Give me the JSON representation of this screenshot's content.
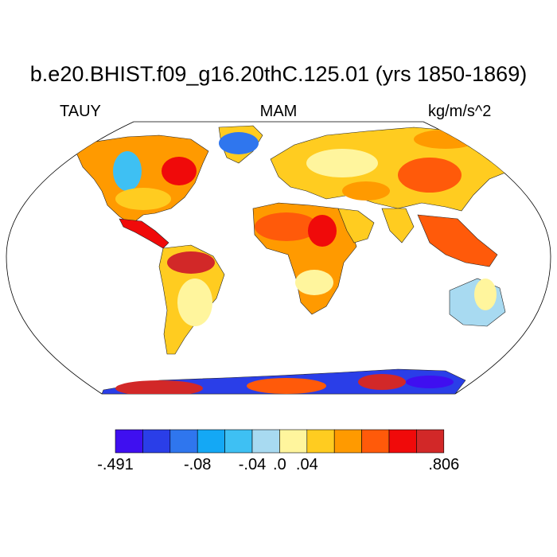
{
  "title": "b.e20.BHIST.f09_g16.20thC.125.01 (yrs 1850-1869)",
  "variable": "TAUY",
  "season": "MAM",
  "units": "kg/m/s^2",
  "colorbar": {
    "colors": [
      "#3f0ff0",
      "#2a3ee8",
      "#2f76ee",
      "#14a8f5",
      "#3ec0f3",
      "#a8daf1",
      "#fff59d",
      "#ffcc20",
      "#ff9a00",
      "#ff5a0a",
      "#f00a0a",
      "#d22828"
    ],
    "tick_labels": [
      "-.491",
      "-.08",
      "-.04",
      ".0",
      ".04",
      ".806"
    ]
  },
  "map": {
    "projection": "robinson",
    "ocean_color": "#ffffff",
    "land_regions": [
      {
        "name": "north-america",
        "color": "#ff9a00"
      },
      {
        "name": "greenland",
        "color": "#ffcc20"
      },
      {
        "name": "central-america",
        "color": "#f00a0a"
      },
      {
        "name": "south-america",
        "color": "#ffcc20"
      },
      {
        "name": "europe-asia",
        "color": "#ffcc20"
      },
      {
        "name": "africa",
        "color": "#ff9a00"
      },
      {
        "name": "arabia",
        "color": "#ffcc20"
      },
      {
        "name": "india",
        "color": "#ffcc20"
      },
      {
        "name": "southeast-asia",
        "color": "#ff5a0a"
      },
      {
        "name": "australia",
        "color": "#a8daf1"
      },
      {
        "name": "antarctica",
        "color": "#2a3ee8"
      }
    ]
  }
}
